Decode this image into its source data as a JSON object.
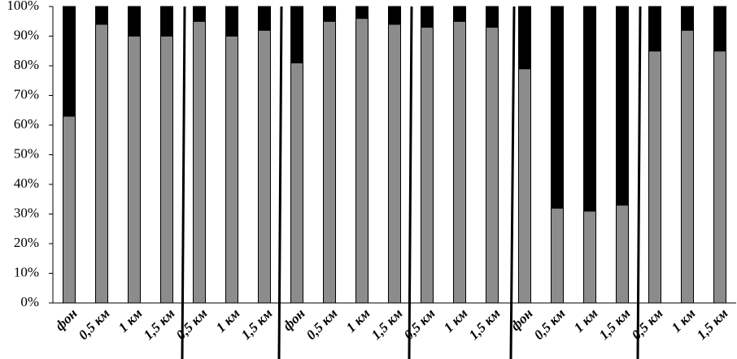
{
  "chart_data": {
    "type": "stacked_bar",
    "categories": [
      "фон",
      "0,5 км",
      "1 км",
      "1,5 км",
      "0,5 км",
      "1 км",
      "1,5 км",
      "фон",
      "0,5 км",
      "1 км",
      "1,5 км",
      "0,5 км",
      "1 км",
      "1,5 км",
      "фон",
      "0,5 км",
      "1 км",
      "1,5 км",
      "0,5 км",
      "1 км",
      "1,5 км"
    ],
    "series": [
      {
        "color": "#8c8c8c",
        "values": [
          63,
          94,
          90,
          90,
          95,
          90,
          92,
          81,
          95,
          96,
          94,
          93,
          95,
          93,
          79,
          32,
          31,
          33,
          85,
          92,
          85
        ]
      },
      {
        "color": "#000000",
        "values": [
          37,
          6,
          10,
          10,
          5,
          10,
          8,
          19,
          5,
          4,
          6,
          7,
          5,
          7,
          21,
          68,
          69,
          67,
          15,
          8,
          15
        ]
      }
    ],
    "ylim": [
      0,
      100
    ],
    "yticks": [
      {
        "value": 0,
        "label": "0%"
      },
      {
        "value": 10,
        "label": "10%"
      },
      {
        "value": 20,
        "label": "20%"
      },
      {
        "value": 30,
        "label": "30%"
      },
      {
        "value": 40,
        "label": "40%"
      },
      {
        "value": 50,
        "label": "50%"
      },
      {
        "value": 60,
        "label": "60%"
      },
      {
        "value": 70,
        "label": "70%"
      },
      {
        "value": 80,
        "label": "80%"
      },
      {
        "value": 90,
        "label": "90%"
      },
      {
        "value": 100,
        "label": "100%"
      }
    ]
  }
}
